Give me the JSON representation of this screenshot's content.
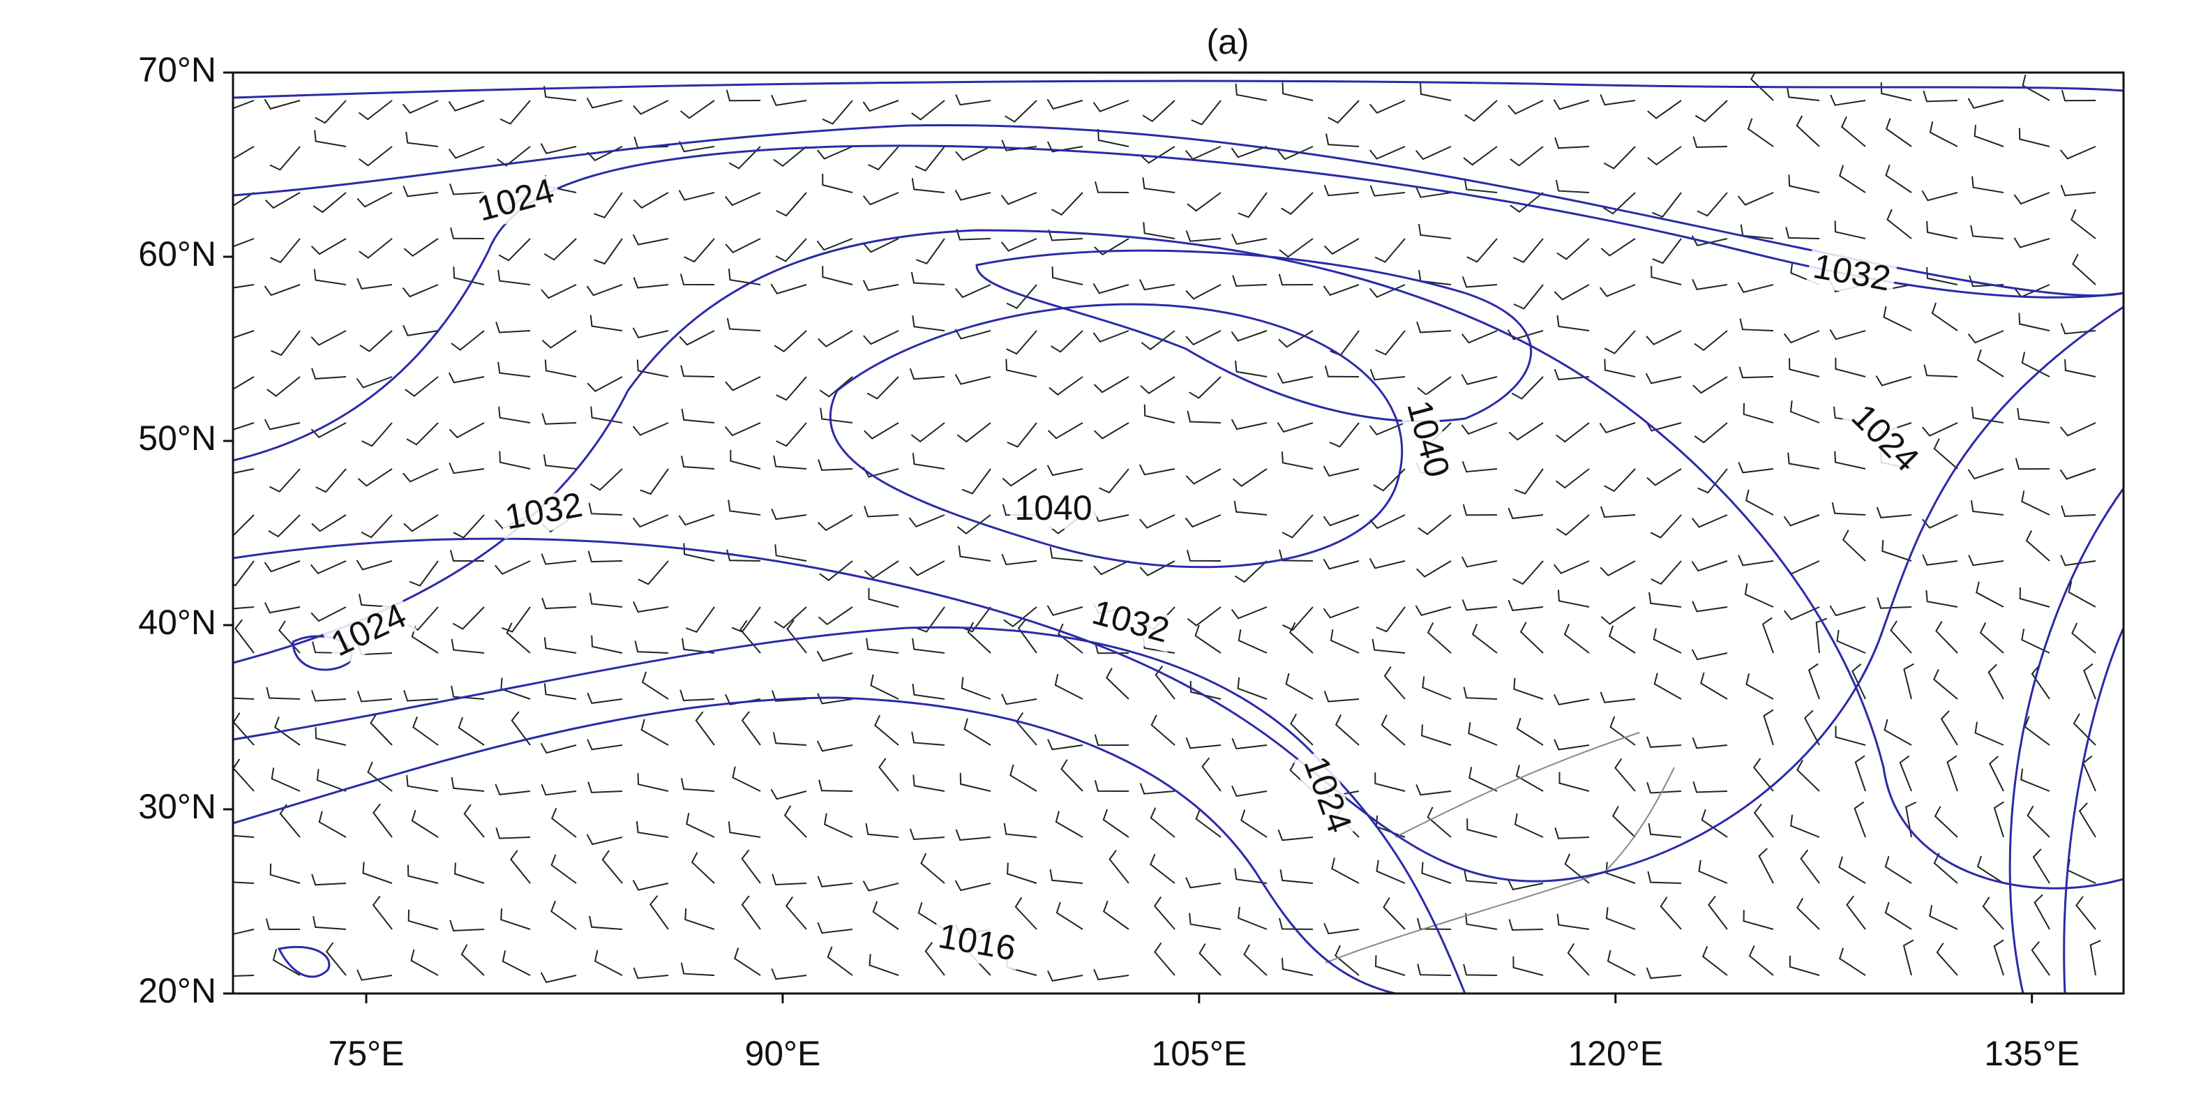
{
  "map": {
    "title": "(a)",
    "lat_range": [
      20,
      70
    ],
    "lon_range": [
      70.2,
      138.3
    ],
    "lat_ticks": [
      {
        "value": 70,
        "label": "70°N"
      },
      {
        "value": 60,
        "label": "60°N"
      },
      {
        "value": 50,
        "label": "50°N"
      },
      {
        "value": 40,
        "label": "40°N"
      },
      {
        "value": 30,
        "label": "30°N"
      },
      {
        "value": 20,
        "label": "20°N"
      }
    ],
    "lon_ticks": [
      {
        "value": 75,
        "label": "75°E"
      },
      {
        "value": 90,
        "label": "90°E"
      },
      {
        "value": 105,
        "label": "105°E"
      },
      {
        "value": 120,
        "label": "120°E"
      },
      {
        "value": 135,
        "label": "135°E"
      }
    ],
    "contour_labels": [
      "1024",
      "1032",
      "1024",
      "1040",
      "1032",
      "1040",
      "1024",
      "1032",
      "1024",
      "1016"
    ]
  }
}
